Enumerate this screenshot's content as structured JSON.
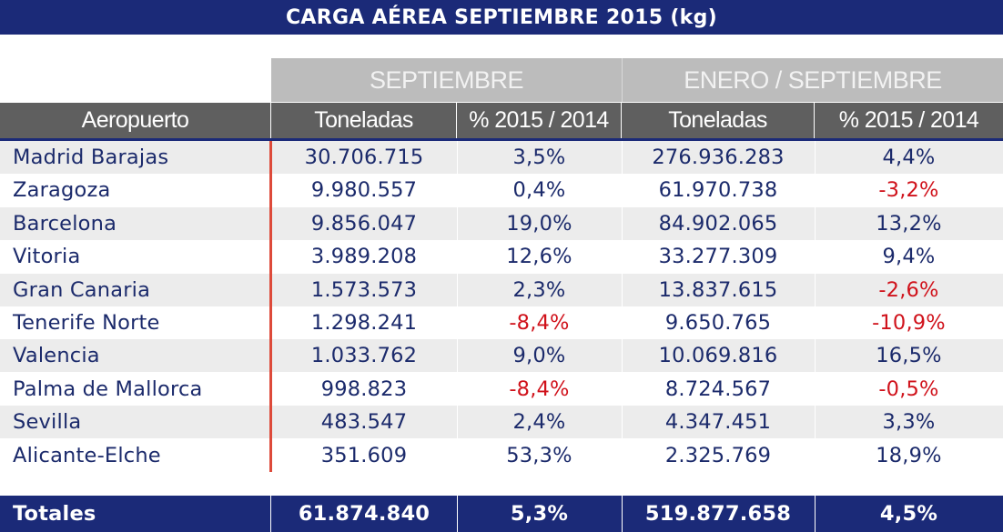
{
  "title": "CARGA AÉREA SEPTIEMBRE 2015 (kg)",
  "groups": {
    "month": "SEPTIEMBRE",
    "ytd": "ENERO / SEPTIEMBRE"
  },
  "columns": [
    "Aeropuerto",
    "Toneladas",
    "% 2015 / 2014",
    "Toneladas",
    "% 2015 / 2014"
  ],
  "colors": {
    "navy": "#1b2a78",
    "text": "#1b2a6b",
    "negative": "#d0121b",
    "divider": "#dd4a3a"
  },
  "rows": [
    {
      "airport": "Madrid Barajas",
      "sep_tons": "30.706.715",
      "sep_pct": "3,5%",
      "ytd_tons": "276.936.283",
      "ytd_pct": "4,4%"
    },
    {
      "airport": "Zaragoza",
      "sep_tons": "9.980.557",
      "sep_pct": "0,4%",
      "ytd_tons": "61.970.738",
      "ytd_pct": "-3,2%"
    },
    {
      "airport": "Barcelona",
      "sep_tons": "9.856.047",
      "sep_pct": "19,0%",
      "ytd_tons": "84.902.065",
      "ytd_pct": "13,2%"
    },
    {
      "airport": "Vitoria",
      "sep_tons": "3.989.208",
      "sep_pct": "12,6%",
      "ytd_tons": "33.277.309",
      "ytd_pct": "9,4%"
    },
    {
      "airport": "Gran Canaria",
      "sep_tons": "1.573.573",
      "sep_pct": "2,3%",
      "ytd_tons": "13.837.615",
      "ytd_pct": "-2,6%"
    },
    {
      "airport": "Tenerife Norte",
      "sep_tons": "1.298.241",
      "sep_pct": "-8,4%",
      "ytd_tons": "9.650.765",
      "ytd_pct": "-10,9%"
    },
    {
      "airport": "Valencia",
      "sep_tons": "1.033.762",
      "sep_pct": "9,0%",
      "ytd_tons": "10.069.816",
      "ytd_pct": "16,5%"
    },
    {
      "airport": "Palma de Mallorca",
      "sep_tons": "998.823",
      "sep_pct": "-8,4%",
      "ytd_tons": "8.724.567",
      "ytd_pct": "-0,5%"
    },
    {
      "airport": "Sevilla",
      "sep_tons": "483.547",
      "sep_pct": "2,4%",
      "ytd_tons": "4.347.451",
      "ytd_pct": "3,3%"
    },
    {
      "airport": "Alicante-Elche",
      "sep_tons": "351.609",
      "sep_pct": "53,3%",
      "ytd_tons": "2.325.769",
      "ytd_pct": "18,9%"
    }
  ],
  "totals": {
    "label": "Totales",
    "sep_tons": "61.874.840",
    "sep_pct": "5,3%",
    "ytd_tons": "519.877.658",
    "ytd_pct": "4,5%"
  }
}
